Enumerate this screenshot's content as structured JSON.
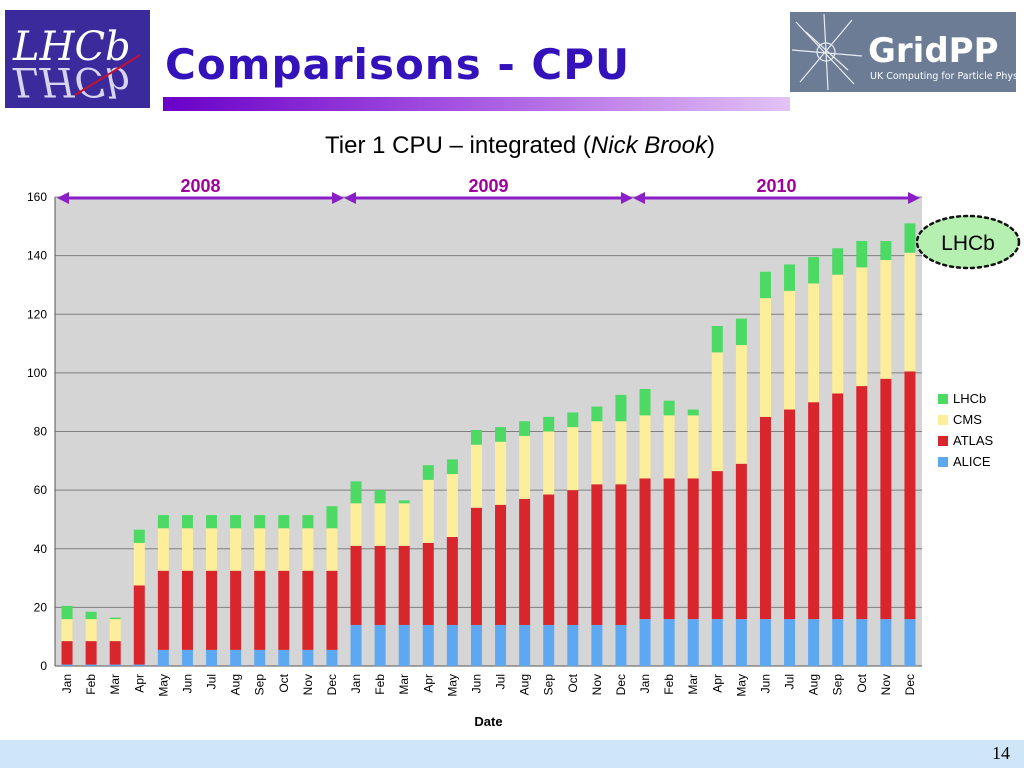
{
  "header": {
    "title": "Comparisons - CPU",
    "left_logo": {
      "text": "LHCb",
      "colors": {
        "background": "#3a2a9c",
        "primary": "#ffffff",
        "accent": "#c8102e"
      }
    },
    "right_logo": {
      "text": "GridPP",
      "tagline": "UK Computing for Particle Physics",
      "colors": {
        "background": "#6d7c95",
        "text": "#ffffff"
      }
    }
  },
  "chart_title": {
    "main": "Tier 1 CPU – integrated (",
    "author": "Nick Brook",
    "close": ")"
  },
  "callout": {
    "label": "LHCb",
    "color": "#b6f0b0"
  },
  "footer": {
    "page_number": "14",
    "color": "#cfe6f8"
  },
  "chart_data": {
    "type": "bar",
    "stacked": true,
    "title": "Tier 1 CPU – integrated (Nick Brook)",
    "xlabel": "Date",
    "ylabel": "",
    "ylim": [
      0,
      160
    ],
    "yticks": [
      0,
      20,
      40,
      60,
      80,
      100,
      120,
      140,
      160
    ],
    "grid": true,
    "legend_position": "right",
    "categories": [
      "Jan",
      "Feb",
      "Mar",
      "Apr",
      "May",
      "Jun",
      "Jul",
      "Aug",
      "Sep",
      "Oct",
      "Nov",
      "Dec",
      "Jan",
      "Feb",
      "Mar",
      "Apr",
      "May",
      "Jun",
      "Jul",
      "Aug",
      "Sep",
      "Oct",
      "Nov",
      "Dec",
      "Jan",
      "Feb",
      "Mar",
      "Apr",
      "May",
      "Jun",
      "Jul",
      "Aug",
      "Sep",
      "Oct",
      "Nov",
      "Dec"
    ],
    "year_spans": [
      {
        "label": "2008",
        "start_index": 0,
        "end_index": 11
      },
      {
        "label": "2009",
        "start_index": 12,
        "end_index": 23
      },
      {
        "label": "2010",
        "start_index": 24,
        "end_index": 35
      }
    ],
    "series": [
      {
        "name": "ALICE",
        "color": "#5ea8f2",
        "values": [
          0.5,
          0.5,
          0.5,
          0.5,
          5.5,
          5.5,
          5.5,
          5.5,
          5.5,
          5.5,
          5.5,
          5.5,
          14,
          14,
          14,
          14,
          14,
          14,
          14,
          14,
          14,
          14,
          14,
          14,
          16,
          16,
          16,
          16,
          16,
          16,
          16,
          16,
          16,
          16,
          16,
          16
        ]
      },
      {
        "name": "ATLAS",
        "color": "#d9262c",
        "values": [
          8,
          8,
          8,
          27,
          27,
          27,
          27,
          27,
          27,
          27,
          27,
          27,
          27,
          27,
          27,
          28,
          30,
          40,
          41,
          43,
          44.5,
          46,
          48,
          48,
          48,
          48,
          48,
          50.5,
          53,
          69,
          71.5,
          74,
          77,
          79.5,
          82,
          84.5
        ]
      },
      {
        "name": "CMS",
        "color": "#fcee9a",
        "values": [
          7.5,
          7.5,
          7.5,
          14.5,
          14.5,
          14.5,
          14.5,
          14.5,
          14.5,
          14.5,
          14.5,
          14.5,
          14.5,
          14.5,
          14.5,
          21.5,
          21.5,
          21.5,
          21.5,
          21.5,
          21.5,
          21.5,
          21.5,
          21.5,
          21.5,
          21.5,
          21.5,
          40.5,
          40.5,
          40.5,
          40.5,
          40.5,
          40.5,
          40.5,
          40.5,
          40.5
        ]
      },
      {
        "name": "LHCb",
        "color": "#4cd964",
        "values": [
          4.5,
          2.5,
          0.5,
          4.5,
          4.5,
          4.5,
          4.5,
          4.5,
          4.5,
          4.5,
          4.5,
          7.5,
          7.5,
          4.5,
          1,
          5,
          5,
          5,
          5,
          5,
          5,
          5,
          5,
          9,
          9,
          5,
          2,
          9,
          9,
          9,
          9,
          9,
          9,
          9,
          6.5,
          10
        ]
      }
    ],
    "legend_order": [
      "LHCb",
      "CMS",
      "ATLAS",
      "ALICE"
    ],
    "colors": {
      "plot_bg": "#d5d5d5",
      "grid": "#7f7f7f",
      "bracket": "#8a1ec8",
      "year_label": "#a0009a"
    }
  }
}
